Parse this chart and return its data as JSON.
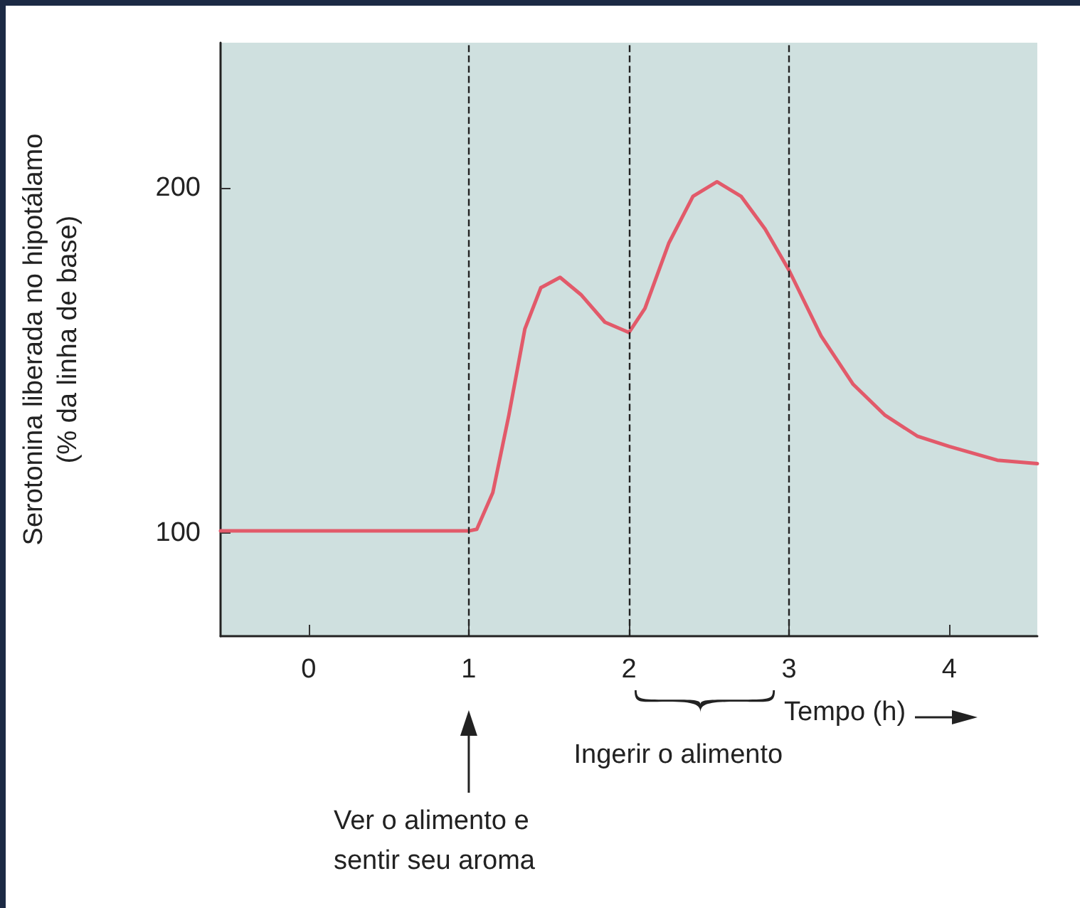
{
  "chart_data": {
    "type": "line",
    "ylabel": "Serotonina liberada no hipotálamo\n(% da linha de base)",
    "xlabel": "Tempo (h)",
    "x": [
      -0.55,
      0,
      1,
      1.05,
      1.15,
      1.25,
      1.35,
      1.45,
      1.57,
      1.7,
      1.85,
      2,
      2.1,
      2.25,
      2.4,
      2.55,
      2.7,
      2.85,
      3,
      3.2,
      3.4,
      3.6,
      3.8,
      4,
      4.3,
      4.55
    ],
    "series": [
      {
        "color": "#e25a6a",
        "values": [
          100.5,
          100.5,
          100.5,
          101,
          111.6,
          134,
          159,
          171,
          174,
          169,
          161,
          158,
          165,
          184,
          197.5,
          201.7,
          197.5,
          188,
          176,
          157,
          143,
          134,
          128,
          125,
          121,
          120
        ]
      }
    ],
    "xlim": [
      -0.55,
      4.55
    ],
    "xticks": [
      0,
      1,
      2,
      3,
      4
    ],
    "ylim": [
      70,
      242
    ],
    "yticks": [
      100,
      200
    ],
    "grid": false,
    "marker": "none",
    "line_style": "solid",
    "ref_lines": [
      {
        "axis": "x",
        "value": 1,
        "color": "#222222",
        "line_style": "dashed"
      },
      {
        "axis": "x",
        "value": 2,
        "color": "#222222",
        "line_style": "dashed"
      },
      {
        "axis": "x",
        "value": 3,
        "color": "#222222",
        "line_style": "dashed"
      }
    ],
    "annotations": [
      "Ver o alimento e\nsentir seu aroma",
      "Ingerir o alimento"
    ]
  }
}
